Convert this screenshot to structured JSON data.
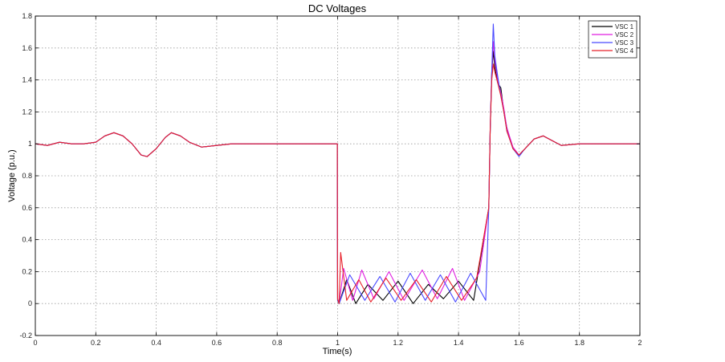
{
  "chart_data": {
    "type": "line",
    "title": "DC Voltages",
    "xlabel": "Time(s)",
    "ylabel": "Voltage (p.u.)",
    "xlim": [
      0,
      2
    ],
    "ylim": [
      -0.2,
      1.8
    ],
    "x_ticks": [
      0,
      0.2,
      0.4,
      0.6,
      0.8,
      1,
      1.2,
      1.4,
      1.6,
      1.8,
      2
    ],
    "x_tick_labels": [
      "0",
      "0.2",
      "0.4",
      "0.6",
      "0.8",
      "1",
      "1.2",
      "1.4",
      "1.6",
      "1.8",
      "2"
    ],
    "y_ticks": [
      -0.2,
      0,
      0.2,
      0.4,
      0.6,
      0.8,
      1,
      1.2,
      1.4,
      1.6,
      1.8
    ],
    "y_tick_labels": [
      "-0.2",
      "0",
      "0.2",
      "0.4",
      "0.6",
      "0.8",
      "1",
      "1.2",
      "1.4",
      "1.6",
      "1.8"
    ],
    "grid": true,
    "legend_position": "top-right",
    "series": [
      {
        "name": "VSC 1",
        "color": "#000000",
        "x": [
          0,
          0.04,
          0.08,
          0.12,
          0.16,
          0.2,
          0.23,
          0.26,
          0.29,
          0.32,
          0.35,
          0.37,
          0.4,
          0.43,
          0.45,
          0.48,
          0.51,
          0.55,
          0.6,
          0.65,
          0.7,
          0.8,
          0.9,
          0.999,
          1.0,
          1.005,
          1.03,
          1.06,
          1.1,
          1.15,
          1.2,
          1.25,
          1.3,
          1.35,
          1.4,
          1.45,
          1.5,
          1.505,
          1.51,
          1.515,
          1.52,
          1.53,
          1.54,
          1.55,
          1.56,
          1.58,
          1.6,
          1.62,
          1.65,
          1.68,
          1.71,
          1.74,
          1.8,
          1.9,
          2.0
        ],
        "y": [
          1.0,
          0.99,
          1.01,
          1.0,
          1.0,
          1.01,
          1.05,
          1.07,
          1.05,
          1.0,
          0.93,
          0.92,
          0.97,
          1.04,
          1.07,
          1.05,
          1.01,
          0.98,
          0.99,
          1.0,
          1.0,
          1.0,
          1.0,
          1.0,
          0.02,
          0.0,
          0.15,
          0.0,
          0.12,
          0.02,
          0.14,
          0.0,
          0.12,
          0.03,
          0.14,
          0.02,
          0.6,
          1.1,
          1.45,
          1.58,
          1.48,
          1.38,
          1.35,
          1.2,
          1.1,
          0.97,
          0.93,
          0.97,
          1.03,
          1.05,
          1.02,
          0.99,
          1.0,
          1.0,
          1.0
        ]
      },
      {
        "name": "VSC 2",
        "color": "#e01ee0",
        "x": [
          0,
          0.04,
          0.08,
          0.12,
          0.16,
          0.2,
          0.23,
          0.26,
          0.29,
          0.32,
          0.35,
          0.37,
          0.4,
          0.43,
          0.45,
          0.48,
          0.51,
          0.55,
          0.6,
          0.65,
          0.7,
          0.8,
          0.9,
          0.999,
          1.0,
          1.005,
          1.02,
          1.05,
          1.08,
          1.12,
          1.17,
          1.22,
          1.28,
          1.33,
          1.38,
          1.42,
          1.47,
          1.5,
          1.505,
          1.51,
          1.515,
          1.52,
          1.53,
          1.54,
          1.55,
          1.56,
          1.58,
          1.6,
          1.62,
          1.65,
          1.68,
          1.71,
          1.74,
          1.8,
          1.9,
          2.0
        ],
        "y": [
          1.0,
          0.99,
          1.01,
          1.0,
          1.0,
          1.01,
          1.05,
          1.07,
          1.05,
          1.0,
          0.93,
          0.92,
          0.97,
          1.04,
          1.07,
          1.05,
          1.01,
          0.98,
          0.99,
          1.0,
          1.0,
          1.0,
          1.0,
          1.0,
          0.03,
          0.0,
          0.22,
          0.02,
          0.21,
          0.03,
          0.2,
          0.02,
          0.21,
          0.03,
          0.22,
          0.02,
          0.2,
          0.6,
          1.1,
          1.45,
          1.64,
          1.52,
          1.4,
          1.32,
          1.22,
          1.1,
          0.98,
          0.93,
          0.97,
          1.03,
          1.05,
          1.02,
          0.99,
          1.0,
          1.0,
          1.0
        ]
      },
      {
        "name": "VSC 3",
        "color": "#4a4aff",
        "x": [
          0,
          0.04,
          0.08,
          0.12,
          0.16,
          0.2,
          0.23,
          0.26,
          0.29,
          0.32,
          0.35,
          0.37,
          0.4,
          0.43,
          0.45,
          0.48,
          0.51,
          0.55,
          0.6,
          0.65,
          0.7,
          0.8,
          0.9,
          0.999,
          1.0,
          1.005,
          1.04,
          1.09,
          1.14,
          1.19,
          1.24,
          1.29,
          1.34,
          1.39,
          1.44,
          1.49,
          1.5,
          1.505,
          1.51,
          1.515,
          1.52,
          1.53,
          1.54,
          1.55,
          1.56,
          1.58,
          1.6,
          1.62,
          1.65,
          1.68,
          1.71,
          1.74,
          1.8,
          1.9,
          2.0
        ],
        "y": [
          1.0,
          0.99,
          1.01,
          1.0,
          1.0,
          1.01,
          1.05,
          1.07,
          1.05,
          1.0,
          0.93,
          0.92,
          0.97,
          1.04,
          1.07,
          1.05,
          1.01,
          0.98,
          0.99,
          1.0,
          1.0,
          1.0,
          1.0,
          1.0,
          0.02,
          0.0,
          0.18,
          0.02,
          0.17,
          0.01,
          0.19,
          0.02,
          0.18,
          0.01,
          0.19,
          0.02,
          0.6,
          1.1,
          1.45,
          1.75,
          1.55,
          1.42,
          1.3,
          1.2,
          1.08,
          0.97,
          0.92,
          0.97,
          1.03,
          1.05,
          1.02,
          0.99,
          1.0,
          1.0,
          1.0
        ]
      },
      {
        "name": "VSC 4",
        "color": "#e8202a",
        "x": [
          0,
          0.04,
          0.08,
          0.12,
          0.16,
          0.2,
          0.23,
          0.26,
          0.29,
          0.32,
          0.35,
          0.37,
          0.4,
          0.43,
          0.45,
          0.48,
          0.51,
          0.55,
          0.6,
          0.65,
          0.7,
          0.8,
          0.9,
          0.999,
          1.0,
          1.005,
          1.01,
          1.03,
          1.07,
          1.11,
          1.16,
          1.21,
          1.26,
          1.31,
          1.36,
          1.41,
          1.46,
          1.5,
          1.505,
          1.51,
          1.515,
          1.52,
          1.53,
          1.54,
          1.55,
          1.56,
          1.58,
          1.6,
          1.62,
          1.65,
          1.68,
          1.71,
          1.74,
          1.8,
          1.9,
          2.0
        ],
        "y": [
          1.0,
          0.99,
          1.01,
          1.0,
          1.0,
          1.01,
          1.05,
          1.07,
          1.05,
          1.0,
          0.93,
          0.92,
          0.97,
          1.04,
          1.07,
          1.05,
          1.01,
          0.98,
          0.99,
          1.0,
          1.0,
          1.0,
          1.0,
          1.0,
          0.03,
          0.0,
          0.32,
          0.02,
          0.15,
          0.01,
          0.16,
          0.02,
          0.15,
          0.01,
          0.17,
          0.02,
          0.16,
          0.6,
          1.1,
          1.4,
          1.5,
          1.45,
          1.38,
          1.3,
          1.2,
          1.08,
          0.97,
          0.93,
          0.97,
          1.03,
          1.05,
          1.02,
          0.99,
          1.0,
          1.0,
          1.0
        ]
      }
    ]
  }
}
